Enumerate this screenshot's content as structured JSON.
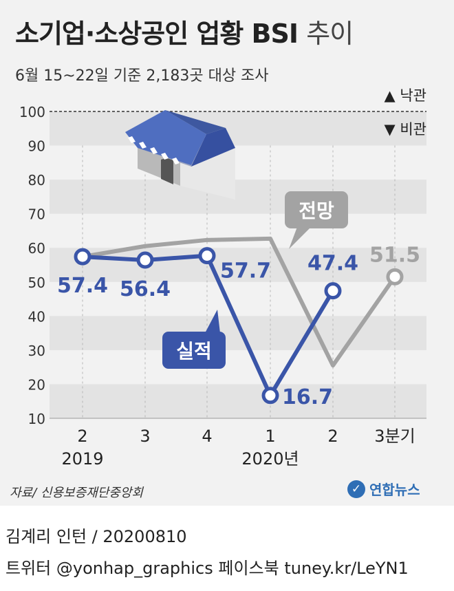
{
  "header": {
    "title": "소기업·소상공인 업황 BSI",
    "title_suffix": "추이",
    "subtitle": "6월 15~22일 기준 2,183곳 대상 조사"
  },
  "legend": {
    "up": "▲ 낙관",
    "down": "▼ 비관"
  },
  "footer": {
    "source": "자료/ 신용보증재단중앙회",
    "logo": "연합뉴스",
    "credit": "김계리 인턴 / 20200810",
    "social": "트위터 @yonhap_graphics  페이스북 tuney.kr/LeYN1"
  },
  "colors": {
    "actual": "#3a55a8",
    "outlook": "#a3a3a3",
    "band": "#e3e3e3",
    "background": "#f2f2f2"
  },
  "chart_data": {
    "type": "line",
    "categories": [
      "2",
      "3",
      "4",
      "1",
      "2",
      "3분기"
    ],
    "year_labels": [
      "2019",
      "2020년"
    ],
    "y_ticks": [
      10,
      20,
      30,
      40,
      50,
      60,
      70,
      80,
      90,
      100
    ],
    "ylim": [
      10,
      100
    ],
    "reference_line": 100,
    "series": [
      {
        "name": "실적",
        "values": [
          57.4,
          56.4,
          57.7,
          16.7,
          47.4,
          null
        ],
        "labels": [
          "57.4",
          "56.4",
          "57.7",
          "16.7",
          "47.4",
          ""
        ]
      },
      {
        "name": "전망",
        "values": [
          57.4,
          60.5,
          62.3,
          62.7,
          25.5,
          51.5
        ],
        "labels": [
          "",
          "",
          "",
          "",
          "",
          "51.5"
        ]
      }
    ]
  }
}
